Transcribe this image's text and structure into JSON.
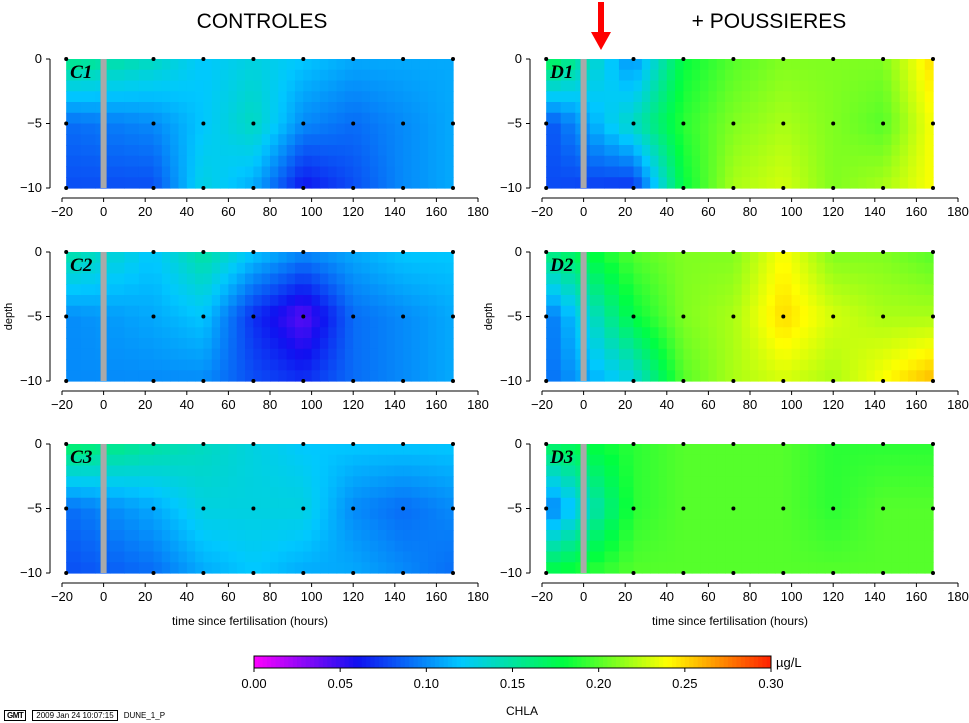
{
  "group_titles": {
    "left": "CONTROLES",
    "right": "+ POUSSIERES"
  },
  "colorbar": {
    "unit": "µg/L",
    "variable": "CHLA",
    "ticks": [
      "0.00",
      "0.05",
      "0.10",
      "0.15",
      "0.20",
      "0.25",
      "0.30"
    ]
  },
  "footer": {
    "logo": "GMT",
    "timestamp": "2009 Jan 24 10:07:15",
    "job": "DUNE_1_P"
  },
  "chart_data": {
    "type": "heatmap",
    "x_values": [
      -18,
      24,
      48,
      72,
      96,
      120,
      144,
      168
    ],
    "depth_values": [
      0,
      -5,
      -10
    ],
    "xlim": [
      -20,
      180
    ],
    "ylim": [
      -10,
      0
    ],
    "xticks": [
      "-20",
      "0",
      "20",
      "40",
      "60",
      "80",
      "100",
      "120",
      "140",
      "160",
      "180"
    ],
    "yticks": [
      "0",
      "-5",
      "-10"
    ],
    "xlabel": "time since fertilisation (hours)",
    "ylabel": "depth",
    "fertilisation_marker_x": 0,
    "colorscale": {
      "min": 0.0,
      "max": 0.3,
      "stops": [
        "#ff00ff",
        "#1010f0",
        "#00c8ff",
        "#00ff40",
        "#ffff00",
        "#ff2000"
      ]
    },
    "panels": [
      {
        "name": "C1",
        "values": [
          [
            0.16,
            0.14,
            0.12,
            0.13,
            0.12,
            0.11,
            0.11,
            0.11
          ],
          [
            0.09,
            0.1,
            0.12,
            0.14,
            0.1,
            0.09,
            0.1,
            0.11
          ],
          [
            0.08,
            0.08,
            0.13,
            0.11,
            0.06,
            0.08,
            0.1,
            0.11
          ]
        ]
      },
      {
        "name": "D1",
        "values": [
          [
            0.18,
            0.1,
            0.18,
            0.2,
            0.21,
            0.21,
            0.21,
            0.25
          ],
          [
            0.08,
            0.14,
            0.19,
            0.21,
            0.22,
            0.21,
            0.2,
            0.24
          ],
          [
            0.08,
            0.07,
            0.18,
            0.22,
            0.23,
            0.21,
            0.22,
            0.24
          ]
        ]
      },
      {
        "name": "C2",
        "values": [
          [
            0.15,
            0.12,
            0.15,
            0.12,
            0.1,
            0.11,
            0.12,
            0.12
          ],
          [
            0.1,
            0.11,
            0.12,
            0.07,
            0.04,
            0.09,
            0.1,
            0.11
          ],
          [
            0.1,
            0.1,
            0.1,
            0.08,
            0.07,
            0.09,
            0.1,
            0.11
          ]
        ]
      },
      {
        "name": "D2",
        "values": [
          [
            0.16,
            0.2,
            0.21,
            0.21,
            0.24,
            0.21,
            0.21,
            0.2
          ],
          [
            0.09,
            0.18,
            0.21,
            0.22,
            0.25,
            0.23,
            0.22,
            0.22
          ],
          [
            0.09,
            0.13,
            0.2,
            0.22,
            0.23,
            0.22,
            0.24,
            0.26
          ]
        ]
      },
      {
        "name": "C3",
        "values": [
          [
            0.17,
            0.15,
            0.14,
            0.13,
            0.12,
            0.12,
            0.12,
            0.12
          ],
          [
            0.09,
            0.11,
            0.13,
            0.13,
            0.13,
            0.1,
            0.09,
            0.1
          ],
          [
            0.08,
            0.09,
            0.11,
            0.12,
            0.11,
            0.11,
            0.1,
            0.09
          ]
        ]
      },
      {
        "name": "D3",
        "values": [
          [
            0.17,
            0.19,
            0.2,
            0.2,
            0.2,
            0.19,
            0.19,
            0.19
          ],
          [
            0.09,
            0.19,
            0.2,
            0.2,
            0.2,
            0.19,
            0.2,
            0.2
          ],
          [
            0.18,
            0.2,
            0.2,
            0.2,
            0.2,
            0.2,
            0.2,
            0.2
          ]
        ]
      }
    ]
  }
}
